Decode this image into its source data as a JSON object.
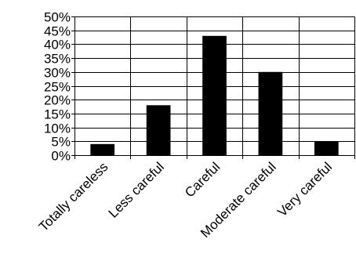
{
  "chart_data": {
    "type": "bar",
    "categories": [
      "Totally careless",
      "Less careful",
      "Careful",
      "Moderate careful",
      "Very careful"
    ],
    "values": [
      4,
      18,
      43,
      30,
      5
    ],
    "unit": "%",
    "ylim": [
      0,
      50
    ],
    "yticks": [
      0,
      5,
      10,
      15,
      20,
      25,
      30,
      35,
      40,
      45,
      50
    ],
    "ytick_labels": [
      "0%",
      "5%",
      "10%",
      "15%",
      "20%",
      "25%",
      "30%",
      "35%",
      "40%",
      "45%",
      "50%"
    ],
    "grid": true,
    "vertical_category_gridlines": true,
    "bar_color": "#000000",
    "title": "",
    "xlabel": "",
    "ylabel": ""
  }
}
